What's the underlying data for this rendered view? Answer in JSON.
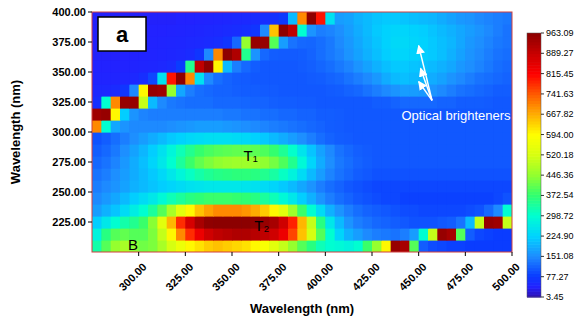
{
  "chart_data": {
    "type": "heatmap",
    "panel_label": "a",
    "x_label": "Wavelength (nm)",
    "y_label": "Wavelength (nm)",
    "xlim": [
      275,
      500
    ],
    "ylim": [
      200,
      400
    ],
    "xticks": [
      {
        "value": 300,
        "label": "300.00"
      },
      {
        "value": 325,
        "label": "325.00"
      },
      {
        "value": 350,
        "label": "350.00"
      },
      {
        "value": 375,
        "label": "375.00"
      },
      {
        "value": 400,
        "label": "400.00"
      },
      {
        "value": 425,
        "label": "425.00"
      },
      {
        "value": 450,
        "label": "450.00"
      },
      {
        "value": 475,
        "label": "475.00"
      },
      {
        "value": 500,
        "label": "500.00"
      }
    ],
    "yticks": [
      {
        "value": 225,
        "label": "225.00"
      },
      {
        "value": 250,
        "label": "250.00"
      },
      {
        "value": 275,
        "label": "275.00"
      },
      {
        "value": 300,
        "label": "300.00"
      },
      {
        "value": 325,
        "label": "325.00"
      },
      {
        "value": 350,
        "label": "350.00"
      },
      {
        "value": 375,
        "label": "375.00"
      },
      {
        "value": 400,
        "label": "400.00"
      }
    ],
    "x": [
      277.5,
      282.5,
      287.5,
      292.5,
      297.5,
      302.5,
      307.5,
      312.5,
      317.5,
      322.5,
      327.5,
      332.5,
      337.5,
      342.5,
      347.5,
      352.5,
      357.5,
      362.5,
      367.5,
      372.5,
      377.5,
      382.5,
      387.5,
      392.5,
      397.5,
      402.5,
      407.5,
      412.5,
      417.5,
      422.5,
      427.5,
      432.5,
      437.5,
      442.5,
      447.5,
      452.5,
      457.5,
      462.5,
      467.5,
      472.5,
      477.5,
      482.5,
      487.5,
      492.5,
      497.5
    ],
    "y": [
      205,
      215,
      225,
      235,
      245,
      255,
      265,
      275,
      285,
      295,
      305,
      315,
      325,
      335,
      345,
      355,
      365,
      375,
      385,
      395
    ],
    "z": [
      [
        330,
        400,
        450,
        470,
        440,
        420,
        430,
        470,
        520,
        560,
        600,
        620,
        640,
        650,
        640,
        630,
        620,
        600,
        580,
        540,
        500,
        450,
        400,
        360,
        320,
        300,
        290,
        280,
        300,
        380,
        450,
        600,
        950,
        930,
        400,
        110,
        95,
        90,
        85,
        85,
        80,
        80,
        80,
        80,
        80
      ],
      [
        280,
        360,
        400,
        410,
        400,
        400,
        430,
        500,
        600,
        700,
        780,
        840,
        880,
        900,
        910,
        920,
        920,
        910,
        900,
        880,
        840,
        760,
        650,
        520,
        400,
        300,
        230,
        190,
        170,
        150,
        140,
        135,
        130,
        140,
        170,
        300,
        500,
        950,
        930,
        400,
        110,
        90,
        85,
        80,
        80
      ],
      [
        220,
        260,
        300,
        330,
        350,
        380,
        440,
        540,
        660,
        780,
        870,
        930,
        960,
        963,
        963,
        963,
        963,
        960,
        950,
        930,
        880,
        790,
        660,
        500,
        360,
        260,
        200,
        160,
        140,
        130,
        120,
        115,
        110,
        105,
        100,
        100,
        100,
        105,
        110,
        130,
        200,
        500,
        950,
        940,
        500
      ],
      [
        170,
        190,
        210,
        240,
        270,
        300,
        340,
        400,
        470,
        540,
        600,
        650,
        680,
        700,
        700,
        700,
        690,
        670,
        640,
        600,
        540,
        460,
        380,
        300,
        240,
        190,
        160,
        140,
        125,
        115,
        110,
        105,
        100,
        95,
        95,
        90,
        90,
        90,
        90,
        90,
        95,
        100,
        120,
        150,
        300
      ],
      [
        150,
        165,
        180,
        200,
        220,
        240,
        260,
        290,
        320,
        340,
        360,
        370,
        380,
        380,
        380,
        375,
        370,
        360,
        340,
        320,
        290,
        260,
        220,
        190,
        160,
        140,
        125,
        115,
        105,
        100,
        95,
        90,
        90,
        85,
        85,
        85,
        85,
        85,
        85,
        85,
        85,
        85,
        85,
        90,
        100
      ],
      [
        140,
        150,
        160,
        175,
        190,
        200,
        210,
        220,
        230,
        240,
        250,
        255,
        260,
        260,
        260,
        260,
        255,
        250,
        240,
        230,
        215,
        200,
        180,
        160,
        140,
        125,
        115,
        105,
        100,
        95,
        90,
        90,
        90,
        90,
        90,
        90,
        90,
        90,
        90,
        90,
        90,
        90,
        90,
        90,
        90
      ],
      [
        130,
        140,
        155,
        170,
        185,
        200,
        215,
        235,
        260,
        285,
        310,
        330,
        345,
        355,
        360,
        365,
        365,
        360,
        350,
        335,
        310,
        280,
        240,
        200,
        170,
        145,
        130,
        120,
        110,
        105,
        100,
        100,
        100,
        100,
        100,
        100,
        100,
        100,
        100,
        100,
        100,
        100,
        100,
        100,
        100
      ],
      [
        120,
        130,
        145,
        165,
        185,
        205,
        230,
        260,
        300,
        340,
        380,
        410,
        430,
        445,
        455,
        460,
        460,
        455,
        445,
        425,
        395,
        350,
        290,
        230,
        185,
        155,
        135,
        125,
        115,
        110,
        105,
        105,
        105,
        105,
        105,
        105,
        105,
        105,
        105,
        105,
        105,
        105,
        105,
        105,
        105
      ],
      [
        110,
        120,
        135,
        155,
        175,
        195,
        220,
        250,
        285,
        320,
        350,
        375,
        390,
        400,
        405,
        410,
        410,
        405,
        395,
        375,
        345,
        305,
        255,
        210,
        175,
        150,
        130,
        120,
        112,
        108,
        105,
        105,
        105,
        105,
        105,
        105,
        105,
        105,
        105,
        105,
        105,
        105,
        105,
        105,
        105
      ],
      [
        100,
        110,
        125,
        140,
        155,
        170,
        185,
        200,
        215,
        225,
        235,
        240,
        245,
        245,
        245,
        240,
        235,
        225,
        215,
        200,
        185,
        170,
        155,
        140,
        125,
        115,
        110,
        108,
        105,
        105,
        105,
        105,
        105,
        105,
        105,
        105,
        105,
        105,
        105,
        105,
        105,
        105,
        105,
        105,
        105
      ],
      [
        700,
        300,
        180,
        160,
        150,
        150,
        150,
        150,
        155,
        160,
        165,
        170,
        170,
        170,
        165,
        160,
        155,
        150,
        145,
        140,
        135,
        130,
        125,
        120,
        115,
        110,
        108,
        105,
        105,
        105,
        105,
        105,
        105,
        105,
        105,
        105,
        105,
        105,
        105,
        105,
        105,
        105,
        105,
        105,
        105
      ],
      [
        940,
        950,
        600,
        220,
        160,
        145,
        140,
        140,
        140,
        140,
        140,
        140,
        140,
        140,
        135,
        135,
        130,
        130,
        125,
        125,
        120,
        120,
        115,
        115,
        110,
        110,
        108,
        105,
        105,
        105,
        105,
        105,
        105,
        105,
        105,
        105,
        105,
        105,
        105,
        105,
        105,
        105,
        105,
        105,
        105
      ],
      [
        60,
        300,
        700,
        950,
        950,
        500,
        200,
        150,
        135,
        130,
        125,
        125,
        125,
        120,
        120,
        120,
        118,
        115,
        115,
        112,
        110,
        110,
        108,
        108,
        105,
        105,
        105,
        105,
        105,
        105,
        110,
        110,
        115,
        120,
        120,
        120,
        120,
        115,
        115,
        110,
        110,
        110,
        108,
        105,
        105
      ],
      [
        50,
        50,
        55,
        70,
        150,
        600,
        950,
        940,
        450,
        180,
        140,
        125,
        120,
        115,
        115,
        112,
        110,
        110,
        108,
        108,
        105,
        105,
        105,
        105,
        105,
        108,
        110,
        115,
        120,
        130,
        140,
        150,
        160,
        170,
        170,
        165,
        160,
        150,
        140,
        130,
        125,
        120,
        115,
        110,
        110
      ],
      [
        45,
        45,
        45,
        48,
        50,
        60,
        90,
        250,
        800,
        960,
        700,
        250,
        150,
        125,
        115,
        110,
        108,
        105,
        105,
        105,
        105,
        105,
        105,
        108,
        110,
        115,
        120,
        130,
        140,
        150,
        165,
        185,
        200,
        205,
        200,
        195,
        185,
        175,
        160,
        150,
        140,
        130,
        125,
        120,
        115
      ],
      [
        42,
        42,
        42,
        44,
        45,
        46,
        48,
        50,
        55,
        80,
        350,
        900,
        960,
        600,
        200,
        140,
        120,
        110,
        105,
        105,
        105,
        105,
        108,
        112,
        118,
        125,
        135,
        145,
        160,
        175,
        190,
        205,
        215,
        215,
        210,
        205,
        200,
        190,
        180,
        165,
        155,
        145,
        135,
        125,
        120
      ],
      [
        40,
        40,
        40,
        42,
        42,
        44,
        45,
        46,
        48,
        50,
        55,
        70,
        150,
        700,
        960,
        920,
        350,
        160,
        120,
        110,
        108,
        108,
        110,
        115,
        125,
        135,
        145,
        160,
        175,
        190,
        205,
        220,
        230,
        230,
        225,
        220,
        215,
        205,
        190,
        175,
        160,
        150,
        140,
        130,
        125
      ],
      [
        40,
        40,
        40,
        40,
        42,
        42,
        44,
        45,
        46,
        48,
        50,
        52,
        55,
        60,
        70,
        120,
        450,
        950,
        950,
        400,
        170,
        130,
        120,
        118,
        125,
        135,
        150,
        165,
        180,
        195,
        210,
        225,
        235,
        235,
        230,
        225,
        215,
        205,
        195,
        180,
        165,
        155,
        145,
        135,
        130
      ],
      [
        40,
        40,
        40,
        40,
        40,
        40,
        42,
        42,
        44,
        45,
        46,
        48,
        50,
        52,
        55,
        58,
        62,
        70,
        150,
        650,
        960,
        900,
        300,
        160,
        140,
        145,
        155,
        170,
        185,
        200,
        215,
        225,
        230,
        230,
        225,
        220,
        210,
        200,
        190,
        180,
        170,
        160,
        150,
        140,
        130
      ],
      [
        40,
        40,
        40,
        40,
        40,
        40,
        40,
        40,
        40,
        42,
        42,
        44,
        45,
        46,
        48,
        50,
        52,
        55,
        58,
        62,
        75,
        200,
        700,
        960,
        800,
        250,
        170,
        175,
        190,
        200,
        210,
        215,
        215,
        210,
        205,
        200,
        195,
        185,
        175,
        165,
        160,
        150,
        145,
        140,
        135
      ]
    ],
    "colorbar": {
      "range": [
        3.45,
        963.09
      ],
      "ticks": [
        3.45,
        77.27,
        151.08,
        {
          "value": 224.9,
          "label": "224.90"
        },
        298.72,
        372.54,
        446.36,
        520.18,
        {
          "value": 594,
          "label": "594.00"
        },
        667.82,
        741.63,
        815.45,
        889.27,
        963.09
      ]
    },
    "annotations": [
      {
        "text": "T₁",
        "x": 360,
        "y": 279,
        "color": "#000000"
      },
      {
        "text": "T₂",
        "x": 366,
        "y": 221,
        "color": "#000000"
      },
      {
        "text": "B",
        "x": 297,
        "y": 205,
        "color": "#000000"
      },
      {
        "text": "Optical brighteners",
        "x": 470,
        "y": 313,
        "color": "#ffffff",
        "points": [
          [
            450,
            372
          ],
          [
            451,
            353
          ],
          [
            450,
            342
          ]
        ]
      }
    ]
  }
}
